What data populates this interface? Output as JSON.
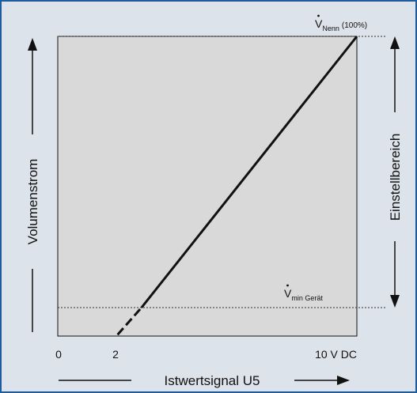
{
  "chart_data": {
    "type": "line",
    "xlabel": "Istwertsignal U5",
    "ylabel": "Volumenstrom",
    "range_label": "Einstellbereich",
    "x_ticks": [
      "0",
      "2",
      "10 V DC"
    ],
    "xlim": [
      0,
      10
    ],
    "ylim": [
      -10,
      100
    ],
    "grid": false,
    "annotations": {
      "top": {
        "symbol": "V",
        "sub": "Nenn",
        "suffix": "(100%)"
      },
      "bottom": {
        "symbol": "V",
        "sub": "min Gerät"
      }
    },
    "series": [
      {
        "style": "dashed",
        "x": [
          2.0,
          2.8
        ],
        "y": [
          -10,
          0
        ]
      },
      {
        "style": "solid",
        "x": [
          2.8,
          10.0
        ],
        "y": [
          0,
          100
        ]
      }
    ]
  },
  "colors": {
    "plot_bg": "#d9d9d9",
    "frame_bg": "#dde3ea",
    "frame_border": "#1f5c9e",
    "line": "#111111"
  }
}
